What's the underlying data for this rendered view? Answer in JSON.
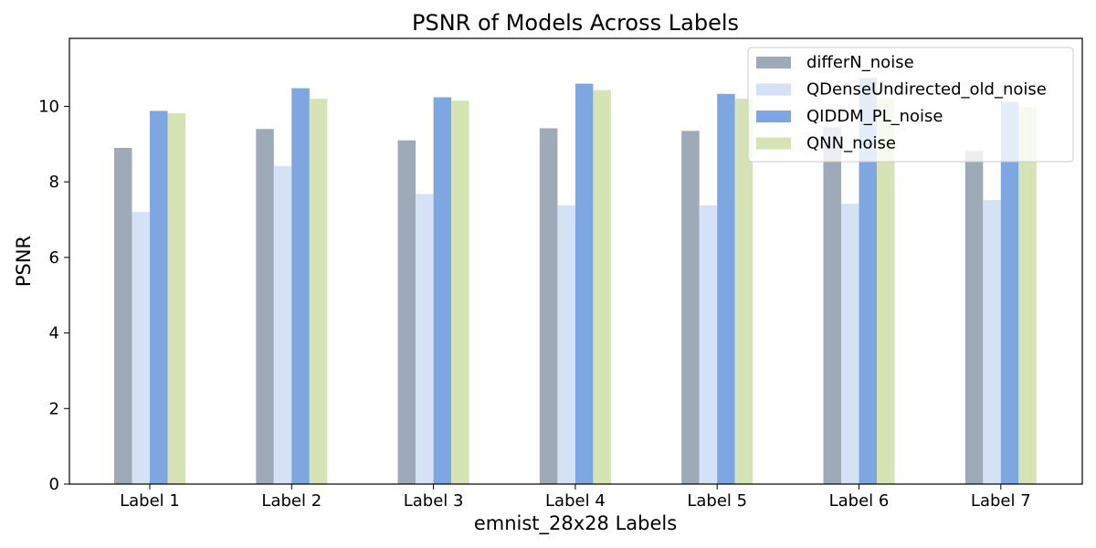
{
  "chart_data": {
    "type": "bar",
    "title": "PSNR of Models Across Labels",
    "xlabel": "emnist_28x28 Labels",
    "ylabel": "PSNR",
    "categories": [
      "Label 1",
      "Label 2",
      "Label 3",
      "Label 4",
      "Label 5",
      "Label 6",
      "Label 7"
    ],
    "ylim": [
      0,
      11.8
    ],
    "yticks": [
      0,
      2,
      4,
      6,
      8,
      10
    ],
    "grid": false,
    "legend_position": "top-right",
    "series": [
      {
        "name": "differN_noise",
        "color": "#9eaab8",
        "values": [
          8.9,
          9.4,
          9.1,
          9.42,
          9.35,
          9.45,
          8.82
        ]
      },
      {
        "name": "QDenseUndirected_old_noise",
        "color": "#d5e1f5",
        "values": [
          7.2,
          8.42,
          7.68,
          7.38,
          7.38,
          7.42,
          7.52
        ]
      },
      {
        "name": "QIDDM_PL_noise",
        "color": "#7ea6e0",
        "values": [
          9.88,
          10.48,
          10.24,
          10.6,
          10.33,
          10.75,
          10.12
        ]
      },
      {
        "name": "QNN_noise",
        "color": "#d5e3b5",
        "values": [
          9.82,
          10.2,
          10.15,
          10.43,
          10.2,
          10.2,
          9.98
        ]
      }
    ]
  }
}
